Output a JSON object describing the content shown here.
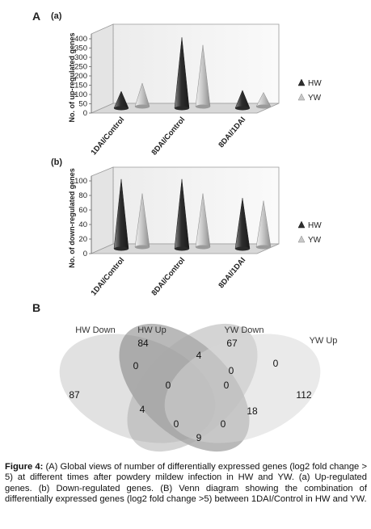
{
  "panel_a_label": "A",
  "panel_b_label": "B",
  "chart_data": [
    {
      "type": "bar",
      "subtitle": "(a)",
      "ylabel": "No. of up-regulated genes",
      "categories": [
        "1DAI/Control",
        "8DAI/Control",
        "8DAI/1DAI"
      ],
      "yticks": [
        0,
        50,
        100,
        150,
        200,
        250,
        300,
        350,
        400
      ],
      "ylim": [
        0,
        400
      ],
      "grid": false,
      "legend_position": "right",
      "series": [
        {
          "name": "HW",
          "values": [
            100,
            390,
            105
          ],
          "color": "#4a4a4a"
        },
        {
          "name": "YW",
          "values": [
            135,
            340,
            85
          ],
          "color": "#b9b9b9"
        }
      ]
    },
    {
      "type": "bar",
      "subtitle": "(b)",
      "ylabel": "No. of down-regulated genes",
      "categories": [
        "1DAI/Control",
        "8DAI/Control",
        "8DAI/1DAI"
      ],
      "yticks": [
        0,
        20,
        40,
        60,
        80,
        100
      ],
      "ylim": [
        0,
        100
      ],
      "grid": false,
      "legend_position": "right",
      "series": [
        {
          "name": "HW",
          "values": [
            98,
            98,
            72
          ],
          "color": "#4a4a4a"
        },
        {
          "name": "YW",
          "values": [
            76,
            76,
            66
          ],
          "color": "#b9b9b9"
        }
      ]
    }
  ],
  "venn": {
    "set_labels": [
      "HW Down",
      "HW Up",
      "YW Down",
      "YW Up"
    ],
    "counts": [
      "87",
      "84",
      "67",
      "112",
      "0",
      "4",
      "0",
      "0",
      "0",
      "0",
      "4",
      "18",
      "0",
      "0",
      "9"
    ]
  },
  "caption": {
    "lead": "Figure 4:",
    "text": " (A) Global views of number of differentially expressed genes (log2 fold change > 5) at different times after powdery mildew infection in HW and YW. (a) Up-regulated genes. (b) Down-regulated genes. (B) Venn diagram showing the combination of differentially expressed genes (log2 fold change >5) between 1DAI/Control in HW and YW."
  }
}
